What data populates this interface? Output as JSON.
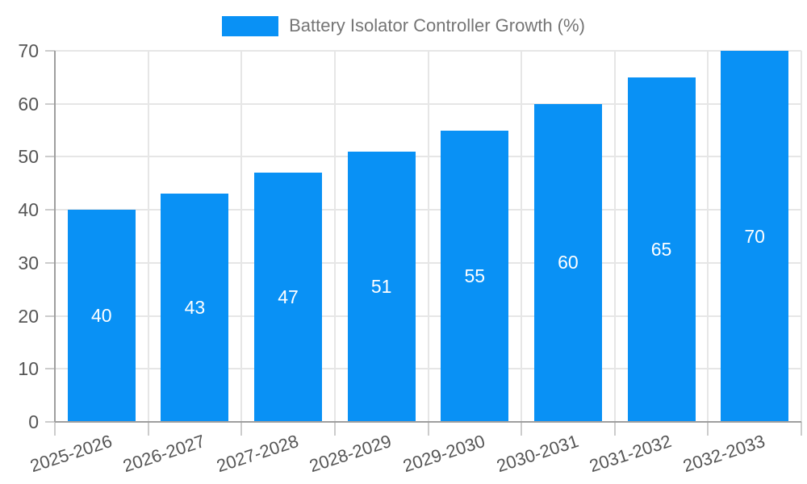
{
  "chart_data": {
    "type": "bar",
    "title": "Battery Isolator Controller Growth (%)",
    "categories": [
      "2025-2026",
      "2026-2027",
      "2027-2028",
      "2028-2029",
      "2029-2030",
      "2030-2031",
      "2031-2032",
      "2032-2033"
    ],
    "values": [
      40,
      43,
      47,
      51,
      55,
      60,
      65,
      70
    ],
    "bar_labels": [
      "40",
      "43",
      "47",
      "51",
      "55",
      "60",
      "65",
      "70"
    ],
    "xlabel": "",
    "ylabel": "",
    "ylim": [
      0,
      70
    ],
    "yticks": [
      0,
      10,
      20,
      30,
      40,
      50,
      60,
      70
    ],
    "grid": true,
    "legend_position": "top",
    "colors": {
      "bar": "#0991f5",
      "gridline": "#e6e6e6",
      "axis_line": "#9e9e9e",
      "tick": "#cccccc",
      "axis_label_text": "#555555",
      "legend_text": "#757575",
      "bar_label_text": "#ffffff",
      "background": "#ffffff"
    }
  }
}
